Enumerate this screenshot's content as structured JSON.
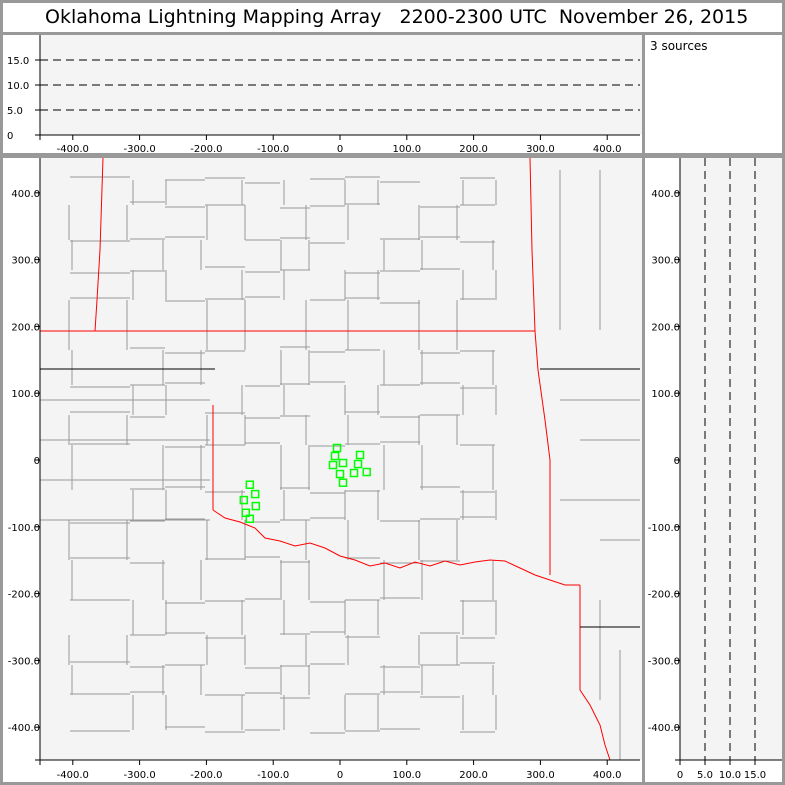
{
  "title": "Oklahoma Lightning Mapping Array   2200-2300 UTC  November 26, 2015",
  "source_count_label": "3 sources",
  "colors": {
    "frame": "#999999",
    "panel": "#f4f4f4",
    "state_border": "#ff0000",
    "county": "#999999",
    "source_marker": "#00ff00"
  },
  "top_panel": {
    "y_ticks": [
      "0",
      "5.0",
      "10.0",
      "15.0"
    ],
    "x_ticks": [
      "-400.0",
      "-300.0",
      "-200.0",
      "-100.0",
      "0",
      "100.0",
      "200.0",
      "300.0",
      "400.0"
    ]
  },
  "map_panel": {
    "y_ticks": [
      "400.0",
      "300.0",
      "200.0",
      "100.0",
      "0",
      "-100.0",
      "-200.0",
      "-300.0",
      "-400.0"
    ],
    "x_ticks": [
      "-400.0",
      "-300.0",
      "-200.0",
      "-100.0",
      "0",
      "100.0",
      "200.0",
      "300.0",
      "400.0"
    ],
    "sources_km": [
      [
        -4.5,
        18
      ],
      [
        -7.5,
        6
      ],
      [
        -10.5,
        -7.5
      ],
      [
        4.5,
        -4.5
      ],
      [
        0,
        -21
      ],
      [
        4.5,
        -34
      ],
      [
        30,
        7.5
      ],
      [
        27,
        -6
      ],
      [
        21,
        -19.5
      ],
      [
        40,
        -18
      ],
      [
        -135,
        -37
      ],
      [
        -127,
        -51
      ],
      [
        -144,
        -60
      ],
      [
        -126,
        -69
      ],
      [
        -141,
        -79
      ],
      [
        -135,
        -88
      ]
    ]
  },
  "side_panel": {
    "y_ticks": [
      "400.0",
      "300.0",
      "200.0",
      "100.0",
      "0",
      "-100.0",
      "-200.0",
      "-300.0",
      "-400.0"
    ],
    "x_ticks": [
      "0",
      "5.0",
      "10.0",
      "15.0"
    ]
  }
}
